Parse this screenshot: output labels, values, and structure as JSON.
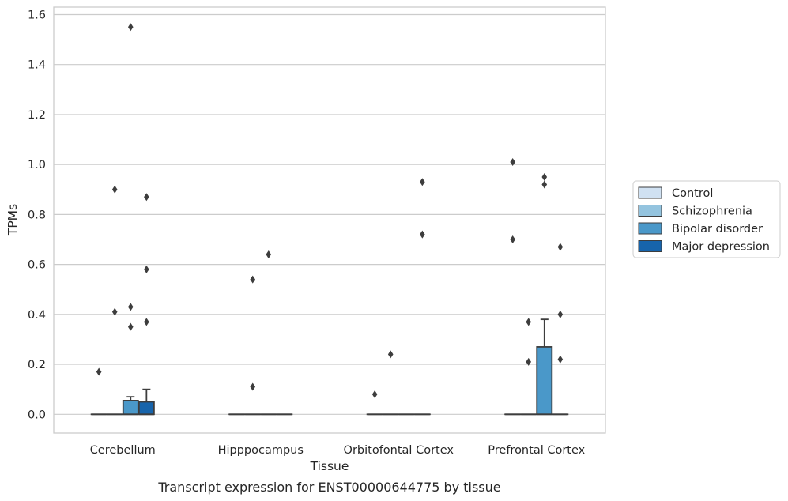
{
  "chart_data": {
    "type": "box",
    "xlabel": "Tissue",
    "ylabel": "TPMs",
    "caption": "Transcript expression for ENST00000644775 by tissue",
    "ylim": [
      -0.075,
      1.63
    ],
    "yticks": [
      "0.0",
      "0.2",
      "0.4",
      "0.6",
      "0.8",
      "1.0",
      "1.2",
      "1.4",
      "1.6"
    ],
    "ytick_values": [
      0,
      0.2,
      0.4,
      0.6,
      0.8,
      1.0,
      1.2,
      1.4,
      1.6
    ],
    "grid": true,
    "legend_position": "right",
    "categories": [
      "Cerebellum",
      "Hipppocampus",
      "Orbitofontal Cortex",
      "Prefrontal Cortex"
    ],
    "series": [
      {
        "name": "Control",
        "color": "#d0e1f2",
        "boxes": [
          {
            "q1": 0,
            "median": 0,
            "q3": 0,
            "whisker_low": 0,
            "whisker_high": 0,
            "outliers": [
              0.17
            ]
          },
          {
            "q1": 0,
            "median": 0,
            "q3": 0,
            "whisker_low": 0,
            "whisker_high": 0,
            "outliers": []
          },
          {
            "q1": 0,
            "median": 0,
            "q3": 0,
            "whisker_low": 0,
            "whisker_high": 0,
            "outliers": [
              0.08
            ]
          },
          {
            "q1": 0,
            "median": 0,
            "q3": 0,
            "whisker_low": 0,
            "whisker_high": 0,
            "outliers": [
              1.01,
              0.7
            ]
          }
        ]
      },
      {
        "name": "Schizophrenia",
        "color": "#94c4df",
        "boxes": [
          {
            "q1": 0,
            "median": 0,
            "q3": 0,
            "whisker_low": 0,
            "whisker_high": 0,
            "outliers": [
              0.9,
              0.41
            ]
          },
          {
            "q1": 0,
            "median": 0,
            "q3": 0,
            "whisker_low": 0,
            "whisker_high": 0,
            "outliers": [
              0.54,
              0.11
            ]
          },
          {
            "q1": 0,
            "median": 0,
            "q3": 0,
            "whisker_low": 0,
            "whisker_high": 0,
            "outliers": [
              0.24
            ]
          },
          {
            "q1": 0,
            "median": 0,
            "q3": 0,
            "whisker_low": 0,
            "whisker_high": 0,
            "outliers": [
              0.37,
              0.21
            ]
          }
        ]
      },
      {
        "name": "Bipolar disorder",
        "color": "#4a98c9",
        "boxes": [
          {
            "q1": 0,
            "median": 0,
            "q3": 0.055,
            "whisker_low": 0,
            "whisker_high": 0.07,
            "outliers": [
              1.55,
              0.43,
              0.35
            ]
          },
          {
            "q1": 0,
            "median": 0,
            "q3": 0,
            "whisker_low": 0,
            "whisker_high": 0,
            "outliers": [
              0.64
            ]
          },
          {
            "q1": 0,
            "median": 0,
            "q3": 0,
            "whisker_low": 0,
            "whisker_high": 0,
            "outliers": []
          },
          {
            "q1": 0,
            "median": 0,
            "q3": 0.27,
            "whisker_low": 0,
            "whisker_high": 0.38,
            "outliers": [
              0.95,
              0.92
            ]
          }
        ]
      },
      {
        "name": "Major depression",
        "color": "#1764ab",
        "boxes": [
          {
            "q1": 0,
            "median": 0,
            "q3": 0.05,
            "whisker_low": 0,
            "whisker_high": 0.1,
            "outliers": [
              0.87,
              0.58,
              0.37
            ]
          },
          {
            "q1": 0,
            "median": 0,
            "q3": 0,
            "whisker_low": 0,
            "whisker_high": 0,
            "outliers": []
          },
          {
            "q1": 0,
            "median": 0,
            "q3": 0,
            "whisker_low": 0,
            "whisker_high": 0,
            "outliers": [
              0.93,
              0.72
            ]
          },
          {
            "q1": 0,
            "median": 0,
            "q3": 0,
            "whisker_low": 0,
            "whisker_high": 0,
            "outliers": [
              0.67,
              0.4,
              0.22
            ]
          }
        ]
      }
    ]
  }
}
